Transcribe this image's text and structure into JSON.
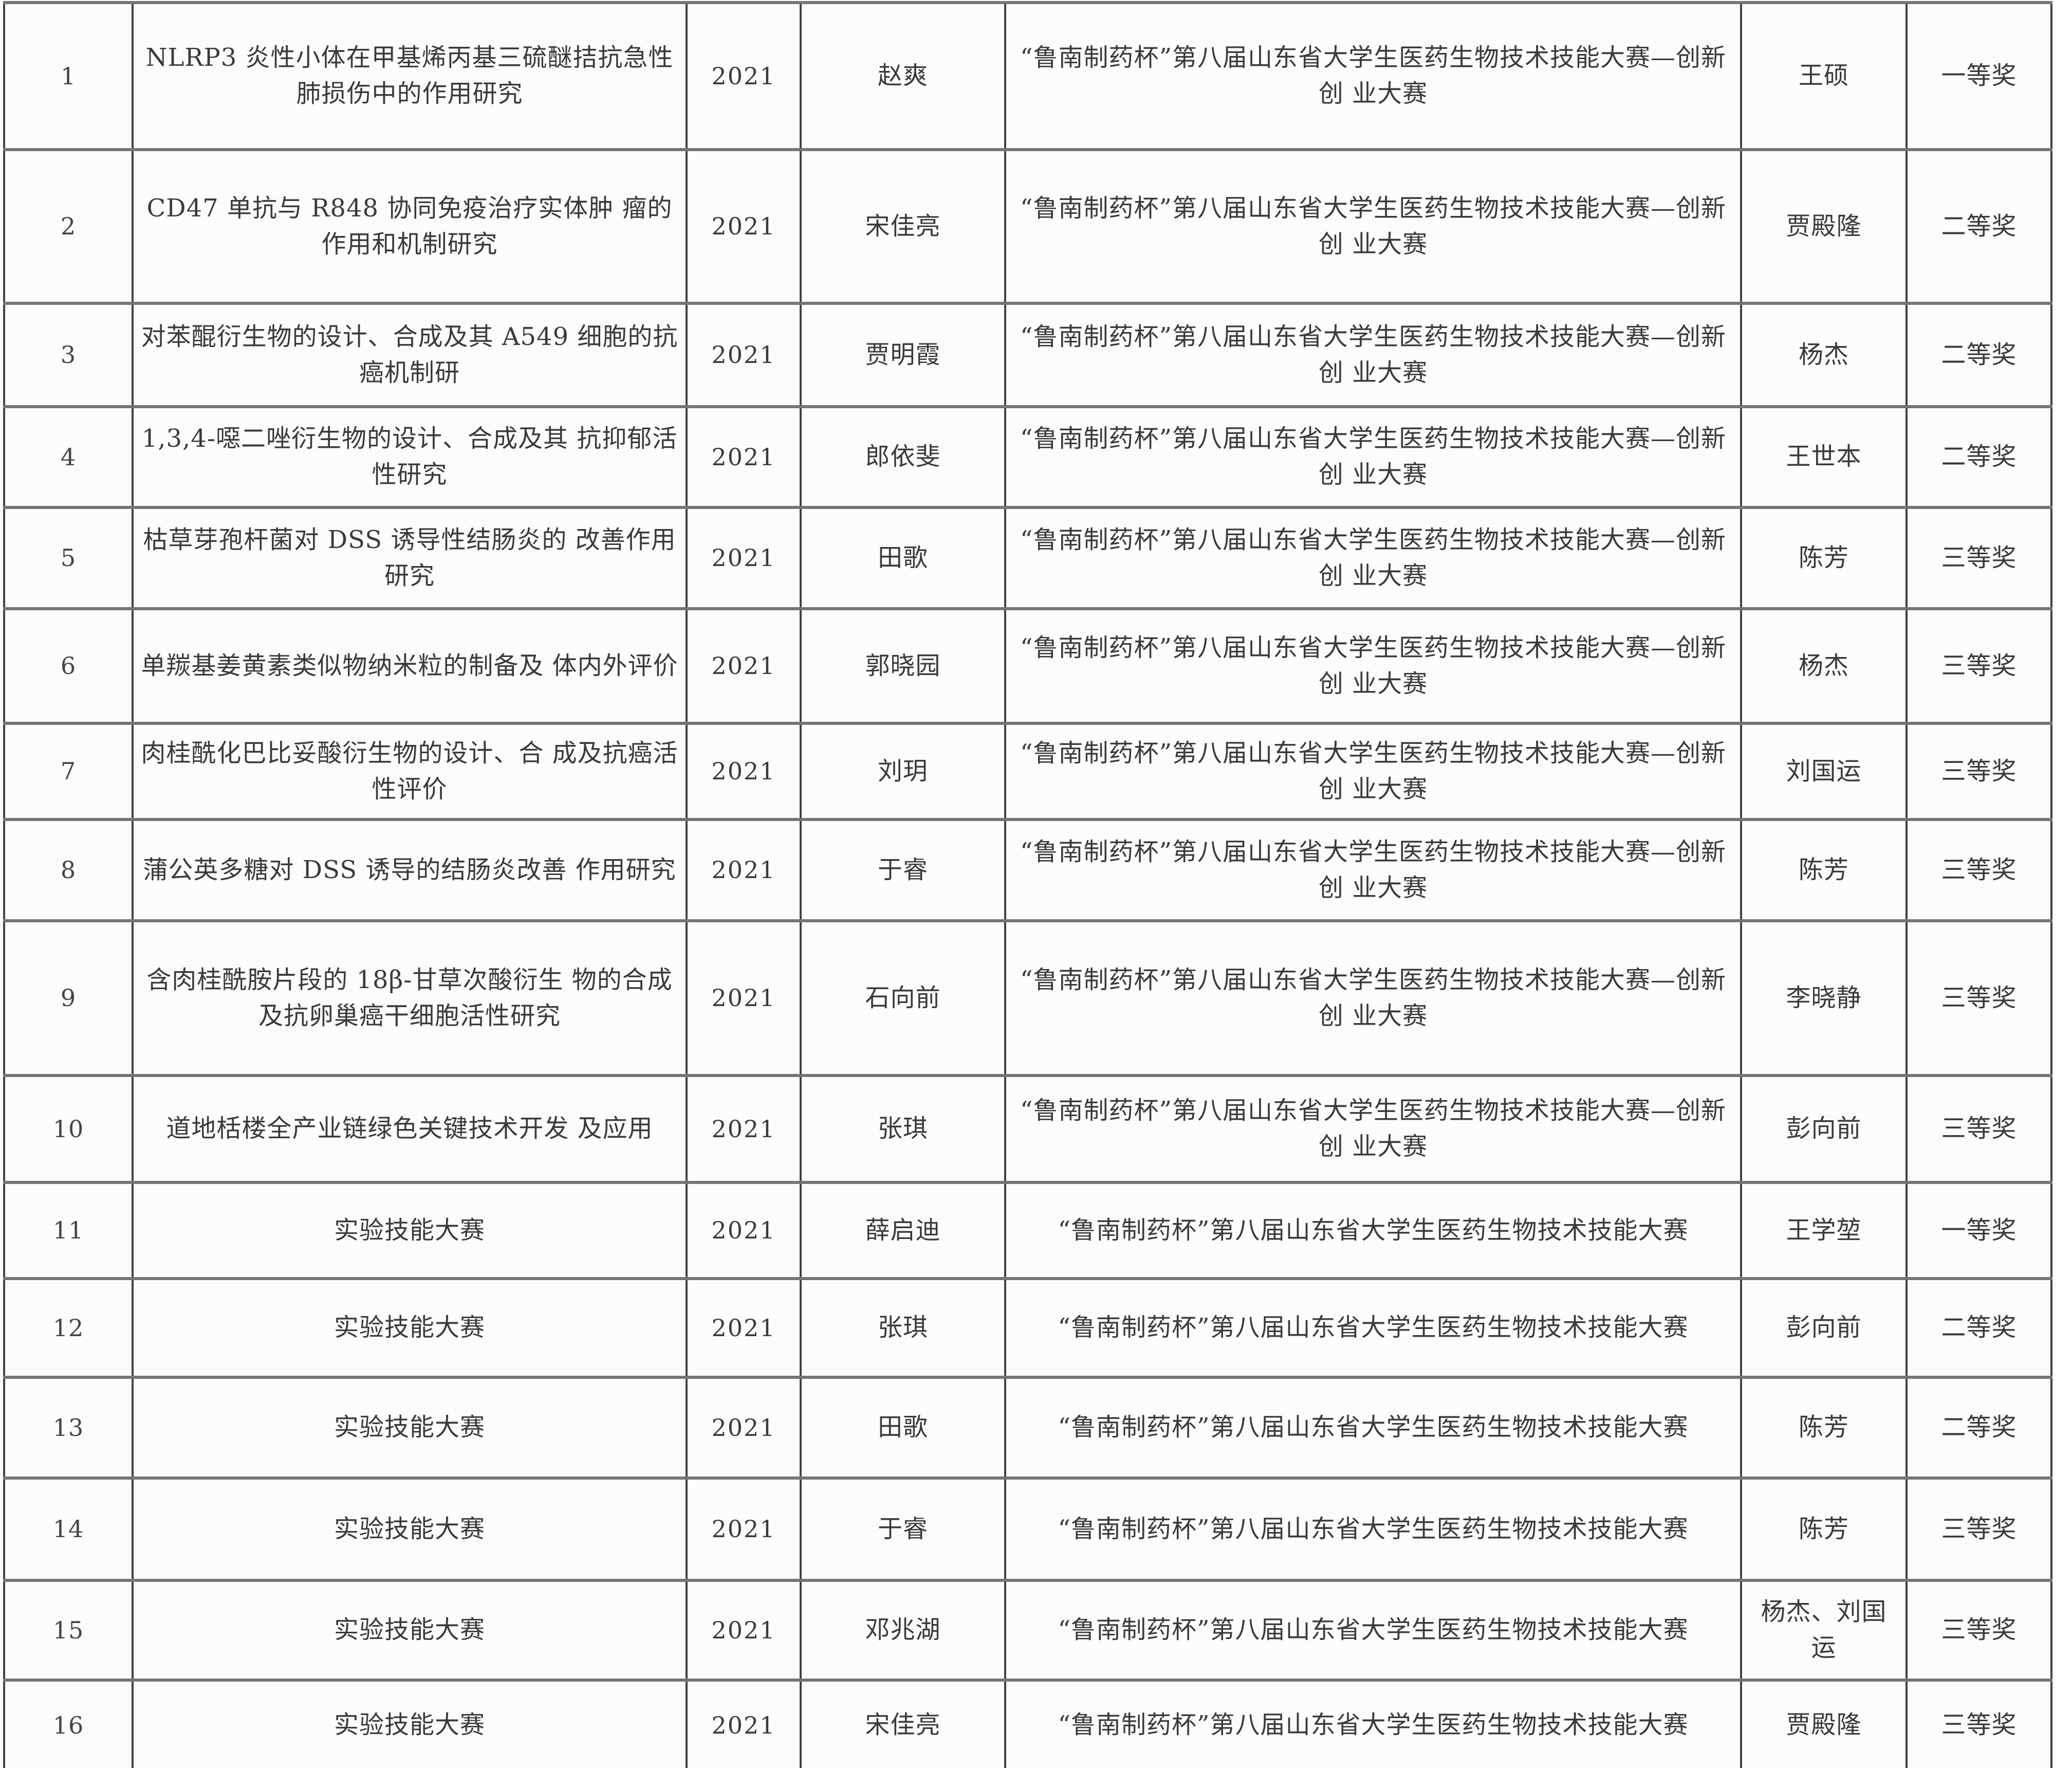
{
  "table": {
    "rows": [
      {
        "index": "1",
        "project": "NLRP3 炎性小体在甲基烯丙基三硫醚拮抗急性肺损伤中的作用研究",
        "year": "2021",
        "student": "赵爽",
        "competition": "“鲁南制药杯”第八届山东省大学生医药生物技术技能大赛—创新创 业大赛",
        "advisor": "王硕",
        "award": "一等奖"
      },
      {
        "index": "2",
        "project": "CD47 单抗与 R848 协同免疫治疗实体肿 瘤的作用和机制研究",
        "year": "2021",
        "student": "宋佳亮",
        "competition": "“鲁南制药杯”第八届山东省大学生医药生物技术技能大赛—创新创 业大赛",
        "advisor": "贾殿隆",
        "award": "二等奖"
      },
      {
        "index": "3",
        "project": "对苯醌衍生物的设计、合成及其 A549 细胞的抗癌机制研",
        "year": "2021",
        "student": "贾明霞",
        "competition": "“鲁南制药杯”第八届山东省大学生医药生物技术技能大赛—创新创 业大赛",
        "advisor": "杨杰",
        "award": "二等奖"
      },
      {
        "index": "4",
        "project": "1,3,4-噁二唑衍生物的设计、合成及其 抗抑郁活性研究",
        "year": "2021",
        "student": "郎依斐",
        "competition": "“鲁南制药杯”第八届山东省大学生医药生物技术技能大赛—创新创 业大赛",
        "advisor": "王世本",
        "award": "二等奖"
      },
      {
        "index": "5",
        "project": "枯草芽孢杆菌对 DSS 诱导性结肠炎的 改善作用研究",
        "year": "2021",
        "student": "田歌",
        "competition": "“鲁南制药杯”第八届山东省大学生医药生物技术技能大赛—创新创 业大赛",
        "advisor": "陈芳",
        "award": "三等奖"
      },
      {
        "index": "6",
        "project": "单羰基姜黄素类似物纳米粒的制备及 体内外评价",
        "year": "2021",
        "student": "郭晓园",
        "competition": "“鲁南制药杯”第八届山东省大学生医药生物技术技能大赛—创新创 业大赛",
        "advisor": "杨杰",
        "award": "三等奖"
      },
      {
        "index": "7",
        "project": "肉桂酰化巴比妥酸衍生物的设计、合 成及抗癌活性评价",
        "year": "2021",
        "student": "刘玥",
        "competition": "“鲁南制药杯”第八届山东省大学生医药生物技术技能大赛—创新创 业大赛",
        "advisor": "刘国运",
        "award": "三等奖"
      },
      {
        "index": "8",
        "project": "蒲公英多糖对 DSS 诱导的结肠炎改善 作用研究",
        "year": "2021",
        "student": "于睿",
        "competition": "“鲁南制药杯”第八届山东省大学生医药生物技术技能大赛—创新创 业大赛",
        "advisor": "陈芳",
        "award": "三等奖"
      },
      {
        "index": "9",
        "project": "含肉桂酰胺片段的 18β-甘草次酸衍生 物的合成及抗卵巢癌干细胞活性研究",
        "year": "2021",
        "student": "石向前",
        "competition": "“鲁南制药杯”第八届山东省大学生医药生物技术技能大赛—创新创 业大赛",
        "advisor": "李晓静",
        "award": "三等奖"
      },
      {
        "index": "10",
        "project": "道地栝楼全产业链绿色关键技术开发 及应用",
        "year": "2021",
        "student": "张琪",
        "competition": "“鲁南制药杯”第八届山东省大学生医药生物技术技能大赛—创新创 业大赛",
        "advisor": "彭向前",
        "award": "三等奖"
      },
      {
        "index": "11",
        "project": "实验技能大赛",
        "year": "2021",
        "student": "薛启迪",
        "competition": "“鲁南制药杯”第八届山东省大学生医药生物技术技能大赛",
        "advisor": "王学堃",
        "award": "一等奖"
      },
      {
        "index": "12",
        "project": "实验技能大赛",
        "year": "2021",
        "student": "张琪",
        "competition": "“鲁南制药杯”第八届山东省大学生医药生物技术技能大赛",
        "advisor": "彭向前",
        "award": "二等奖"
      },
      {
        "index": "13",
        "project": "实验技能大赛",
        "year": "2021",
        "student": "田歌",
        "competition": "“鲁南制药杯”第八届山东省大学生医药生物技术技能大赛",
        "advisor": "陈芳",
        "award": "二等奖"
      },
      {
        "index": "14",
        "project": "实验技能大赛",
        "year": "2021",
        "student": "于睿",
        "competition": "“鲁南制药杯”第八届山东省大学生医药生物技术技能大赛",
        "advisor": "陈芳",
        "award": "三等奖"
      },
      {
        "index": "15",
        "project": "实验技能大赛",
        "year": "2021",
        "student": "邓兆湖",
        "competition": "“鲁南制药杯”第八届山东省大学生医药生物技术技能大赛",
        "advisor": "杨杰、刘国运",
        "award": "三等奖"
      },
      {
        "index": "16",
        "project": "实验技能大赛",
        "year": "2021",
        "student": "宋佳亮",
        "competition": "“鲁南制药杯”第八届山东省大学生医药生物技术技能大赛",
        "advisor": "贾殿隆",
        "award": "三等奖"
      }
    ]
  }
}
